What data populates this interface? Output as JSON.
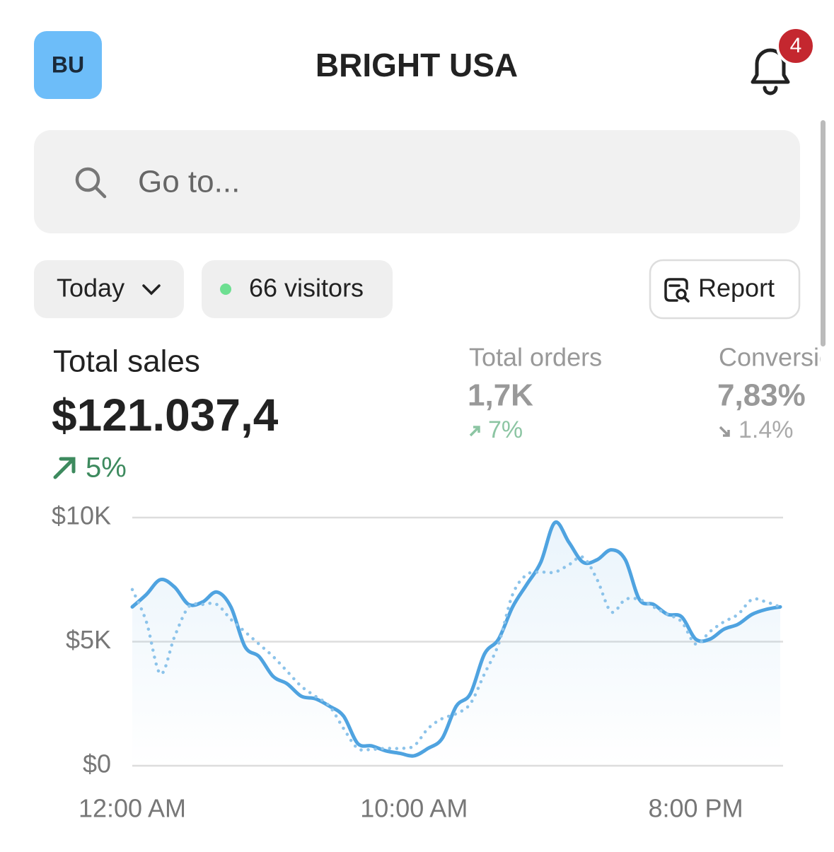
{
  "header": {
    "avatar": "BU",
    "title": "BRIGHT USA",
    "notifications": "4"
  },
  "search": {
    "placeholder": "Go to..."
  },
  "filters": {
    "period": "Today",
    "visitors": "66 visitors",
    "report": "Report"
  },
  "metrics": [
    {
      "label": "Total sales",
      "value": "$121.037,4",
      "change": "5%"
    },
    {
      "label": "Total orders",
      "value": "1,7K",
      "change": "7%"
    },
    {
      "label": "Conversion",
      "value": "7,83%",
      "change": "1.4%"
    }
  ],
  "chart_data": {
    "type": "line",
    "x": [
      0,
      0.5,
      1,
      1.5,
      2,
      2.5,
      3,
      3.5,
      4,
      4.5,
      5,
      5.5,
      6,
      6.5,
      7,
      7.5,
      8,
      8.5,
      9,
      9.5,
      10,
      10.5,
      11,
      11.5,
      12,
      12.5,
      13,
      13.5,
      14,
      14.5,
      15,
      15.5,
      16,
      16.5,
      17,
      17.5,
      18,
      18.5,
      19,
      19.5,
      20,
      20.5,
      21,
      21.5,
      22,
      22.5,
      23
    ],
    "series": [
      {
        "color": "#4fa3e0",
        "style": "solid",
        "values": [
          6400,
          6900,
          7500,
          7200,
          6500,
          6600,
          7000,
          6400,
          4800,
          4400,
          3600,
          3300,
          2800,
          2700,
          2400,
          2000,
          900,
          800,
          600,
          500,
          400,
          700,
          1100,
          2400,
          2900,
          4500,
          5100,
          6400,
          7300,
          8200,
          9800,
          9000,
          8200,
          8300,
          8700,
          8300,
          6700,
          6500,
          6100,
          6000,
          5100,
          5100,
          5500,
          5700,
          6100,
          6300,
          6400
        ]
      },
      {
        "color": "#8cc3ea",
        "style": "dotted",
        "values": [
          7100,
          5800,
          3700,
          5200,
          6400,
          6500,
          6500,
          5900,
          5400,
          4900,
          4400,
          3800,
          3200,
          2800,
          2400,
          1500,
          700,
          660,
          700,
          700,
          800,
          1500,
          1900,
          2100,
          2500,
          3700,
          4900,
          6900,
          7700,
          7800,
          7800,
          8100,
          8400,
          7500,
          6200,
          6700,
          6700,
          6400,
          6100,
          5800,
          4900,
          5400,
          5800,
          6100,
          6700,
          6600,
          6400
        ]
      }
    ],
    "xlim": [
      0,
      23.1
    ],
    "xticks": [
      {
        "value": 0,
        "label": "12:00 AM"
      },
      {
        "value": 10,
        "label": "10:00 AM"
      },
      {
        "value": 20,
        "label": "8:00 PM"
      }
    ],
    "ylim": [
      0,
      10000
    ],
    "yticks": [
      {
        "value": 0,
        "label": "$0"
      },
      {
        "value": 5000,
        "label": "$5K"
      },
      {
        "value": 10000,
        "label": "$10K"
      }
    ],
    "grid": true
  }
}
